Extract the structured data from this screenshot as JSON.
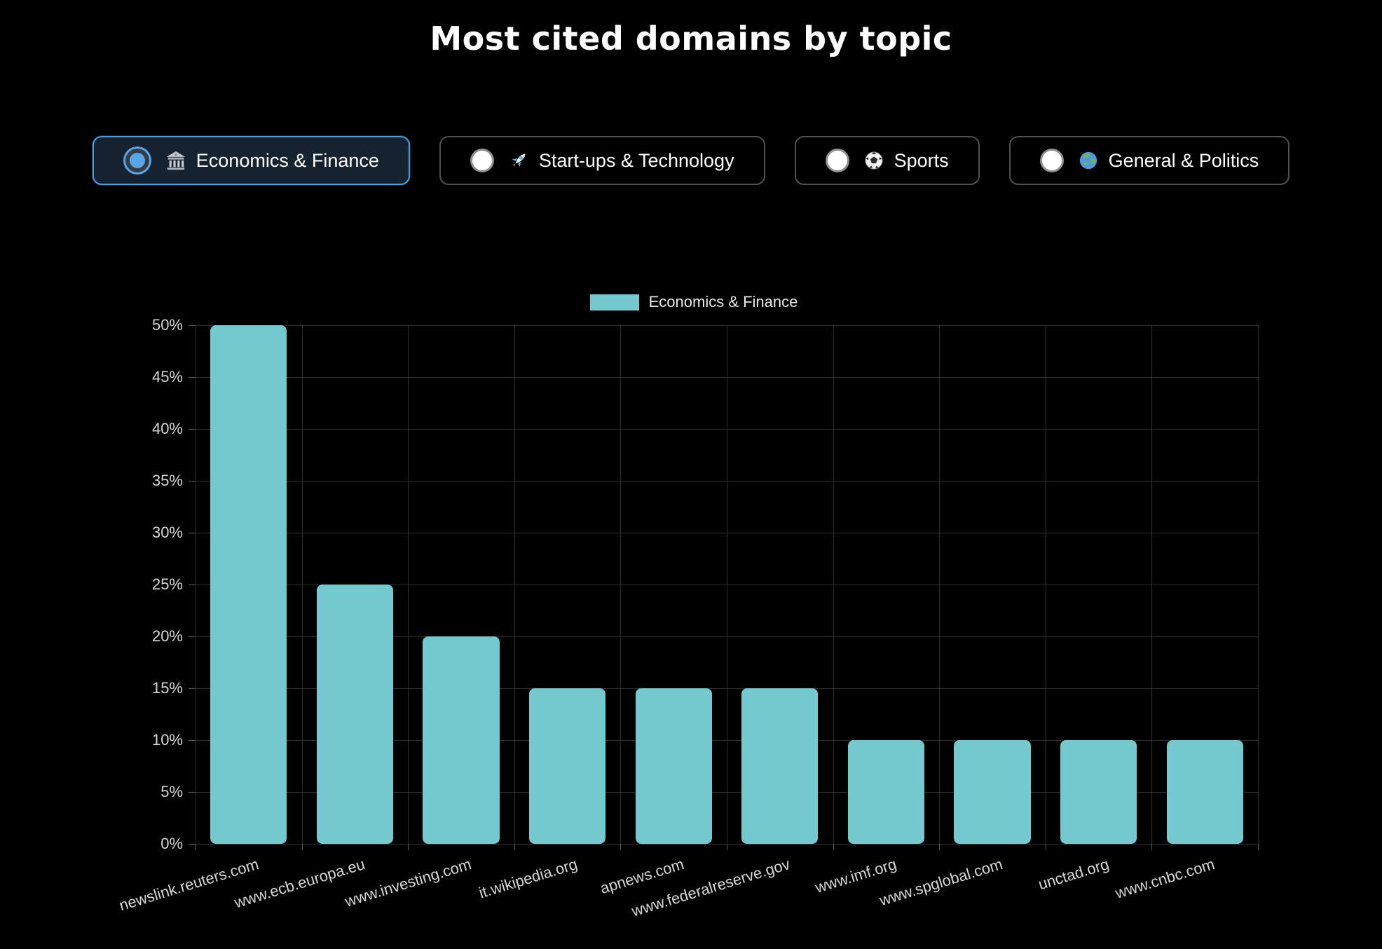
{
  "page": {
    "title": "Most cited domains by topic"
  },
  "topic_buttons": [
    {
      "label": "Economics & Finance",
      "icon": "bank-icon",
      "icon_char": "🏦",
      "selected": true
    },
    {
      "label": "Start-ups & Technology",
      "icon": "rocket-icon",
      "icon_char": "🚀",
      "selected": false
    },
    {
      "label": "Sports",
      "icon": "soccer-ball-icon",
      "icon_char": "⚽",
      "selected": false
    },
    {
      "label": "General & Politics",
      "icon": "globe-icon",
      "icon_char": "🌍",
      "selected": false
    }
  ],
  "chart_data": {
    "type": "bar",
    "legend": {
      "label": "Economics & Finance",
      "position": "top"
    },
    "categories": [
      "newslink.reuters.com",
      "www.ecb.europa.eu",
      "www.investing.com",
      "it.wikipedia.org",
      "apnews.com",
      "www.federalreserve.gov",
      "www.imf.org",
      "www.spglobal.com",
      "unctad.org",
      "www.cnbc.com"
    ],
    "values": [
      50,
      25,
      20,
      15,
      15,
      15,
      10,
      10,
      10,
      10
    ],
    "value_unit": "%",
    "xlabel": "",
    "ylabel": "",
    "ylim": [
      0,
      50
    ],
    "ytick_step": 5,
    "ytick_labels": [
      "50%",
      "45%",
      "40%",
      "35%",
      "30%",
      "25%",
      "20%",
      "15%",
      "10%",
      "5%",
      "0%"
    ],
    "grid": true,
    "x_label_rotation_deg": -17,
    "bar_percentage": 0.72,
    "colors": {
      "bar": "#74c9cf",
      "grid": "#2e2e2e",
      "tick": "#5a5a5a",
      "axis_label": "#d6d6d6",
      "legend_text": "#e8e8e8",
      "selected_accent": "#57a7e8",
      "background": "#000000"
    }
  }
}
